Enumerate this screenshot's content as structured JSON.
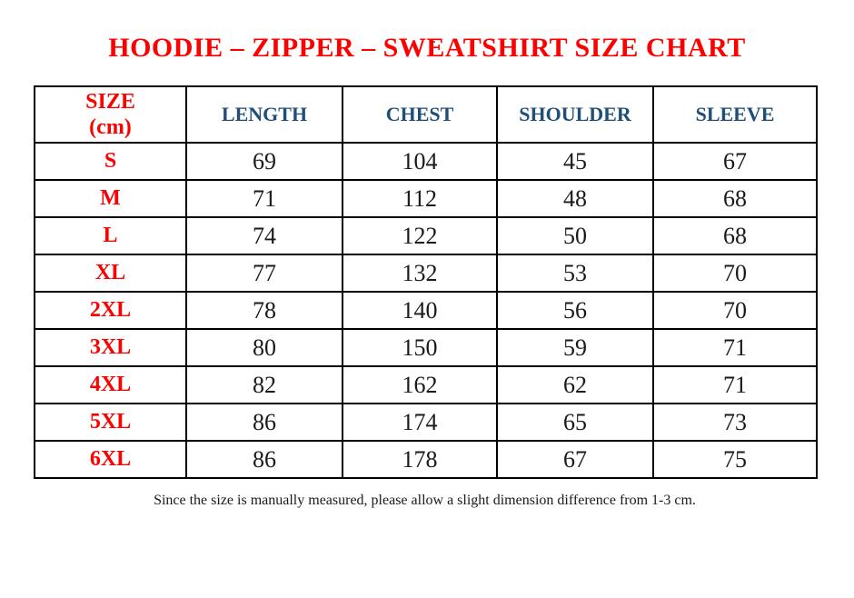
{
  "page": {
    "top_mark": ".",
    "title": "HOODIE – ZIPPER – SWEATSHIRT SIZE CHART",
    "footnote": "Since the size is manually measured, please allow a slight dimension difference from 1-3 cm."
  },
  "colors": {
    "title_red": "#FF0000",
    "size_label_red": "#FF0000",
    "header_blue": "#1F4E79",
    "table_border": "#000000",
    "value_text": "#1A1A1A"
  },
  "table": {
    "header": {
      "size_label": "SIZE",
      "size_unit": "(cm)",
      "columns": [
        "LENGTH",
        "CHEST",
        "SHOULDER",
        "SLEEVE"
      ]
    },
    "rows": [
      {
        "size": "S",
        "values": [
          "69",
          "104",
          "45",
          "67"
        ]
      },
      {
        "size": "M",
        "values": [
          "71",
          "112",
          "48",
          "68"
        ]
      },
      {
        "size": "L",
        "values": [
          "74",
          "122",
          "50",
          "68"
        ]
      },
      {
        "size": "XL",
        "values": [
          "77",
          "132",
          "53",
          "70"
        ]
      },
      {
        "size": "2XL",
        "values": [
          "78",
          "140",
          "56",
          "70"
        ]
      },
      {
        "size": "3XL",
        "values": [
          "80",
          "150",
          "59",
          "71"
        ]
      },
      {
        "size": "4XL",
        "values": [
          "82",
          "162",
          "62",
          "71"
        ]
      },
      {
        "size": "5XL",
        "values": [
          "86",
          "174",
          "65",
          "73"
        ]
      },
      {
        "size": "6XL",
        "values": [
          "86",
          "178",
          "67",
          "75"
        ]
      }
    ]
  }
}
